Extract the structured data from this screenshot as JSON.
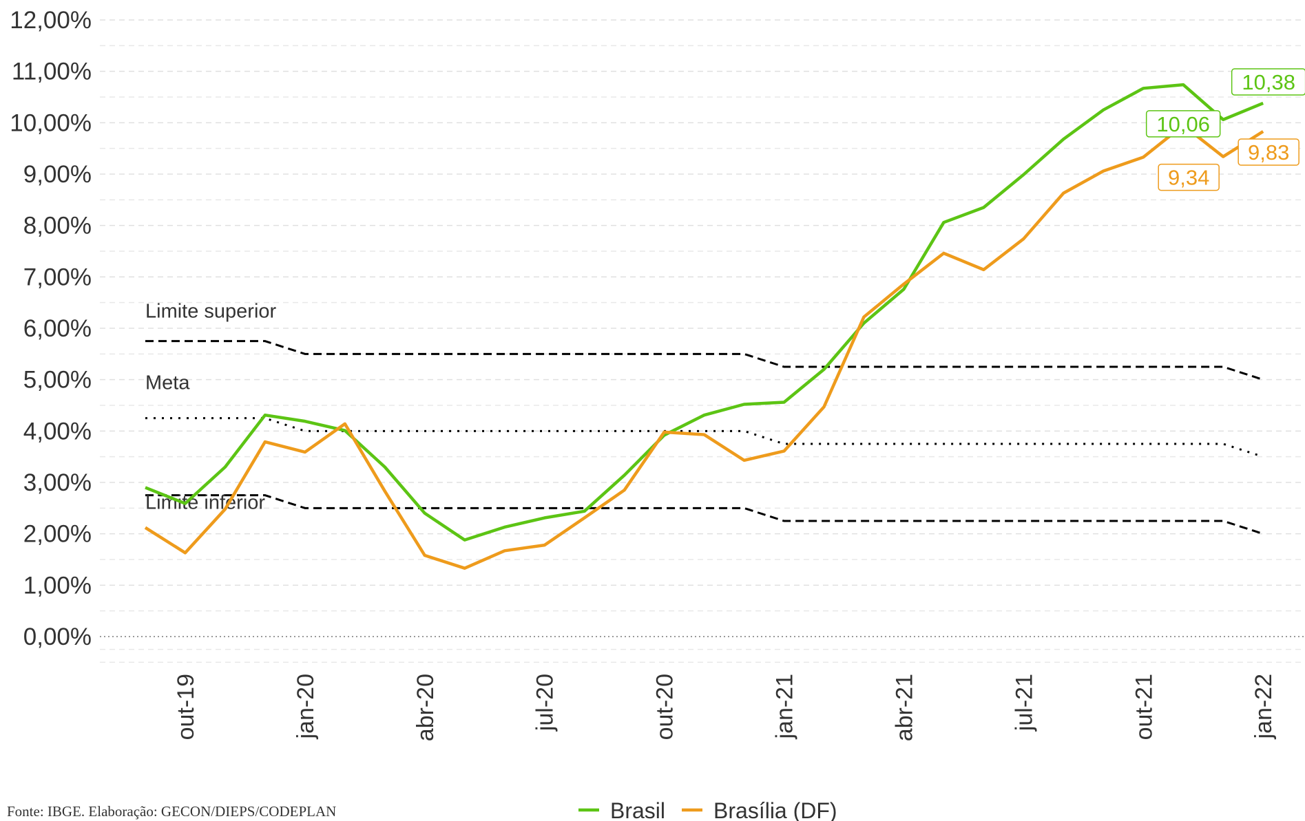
{
  "chart_data": {
    "type": "line",
    "categories": [
      null,
      "out-19",
      null,
      null,
      "jan-20",
      null,
      null,
      "abr-20",
      null,
      null,
      "jul-20",
      null,
      null,
      "out-20",
      null,
      null,
      "jan-21",
      null,
      null,
      "abr-21",
      null,
      null,
      "jul-21",
      null,
      null,
      "out-21",
      null,
      null,
      "jan-22"
    ],
    "series": [
      {
        "name": "Brasil",
        "color": "#5cc414",
        "values": [
          2.9,
          2.59,
          3.3,
          4.31,
          4.19,
          4.01,
          3.3,
          2.4,
          1.88,
          2.13,
          2.31,
          2.44,
          3.14,
          3.92,
          4.31,
          4.52,
          4.56,
          5.2,
          6.1,
          6.76,
          8.06,
          8.35,
          8.99,
          9.68,
          10.25,
          10.67,
          10.74,
          10.06,
          10.38
        ],
        "value_labels": [
          null,
          null,
          null,
          null,
          null,
          null,
          null,
          null,
          null,
          null,
          null,
          null,
          null,
          null,
          null,
          null,
          null,
          null,
          null,
          null,
          null,
          null,
          null,
          null,
          null,
          null,
          null,
          "10,06",
          "10,38"
        ]
      },
      {
        "name": "Brasília (DF)",
        "color": "#ee9b1c",
        "values": [
          2.12,
          1.63,
          2.48,
          3.79,
          3.59,
          4.14,
          2.83,
          1.58,
          1.33,
          1.67,
          1.78,
          2.31,
          2.85,
          3.98,
          3.93,
          3.43,
          3.61,
          4.47,
          6.22,
          6.86,
          7.46,
          7.14,
          7.74,
          8.63,
          9.06,
          9.33,
          9.95,
          9.34,
          9.83
        ],
        "value_labels": [
          null,
          null,
          null,
          null,
          null,
          null,
          null,
          null,
          null,
          null,
          null,
          null,
          null,
          null,
          null,
          null,
          null,
          null,
          null,
          null,
          null,
          null,
          null,
          null,
          null,
          null,
          null,
          "9,34",
          "9,83"
        ]
      }
    ],
    "reference_lines": [
      {
        "label": "Limite superior",
        "style": "dashed",
        "color": "#000000",
        "values": [
          5.75,
          5.75,
          5.75,
          5.75,
          5.5,
          5.5,
          5.5,
          5.5,
          5.5,
          5.5,
          5.5,
          5.5,
          5.5,
          5.5,
          5.5,
          5.5,
          5.25,
          5.25,
          5.25,
          5.25,
          5.25,
          5.25,
          5.25,
          5.25,
          5.25,
          5.25,
          5.25,
          5.25,
          5.0
        ]
      },
      {
        "label": "Meta",
        "style": "dotted",
        "color": "#000000",
        "values": [
          4.25,
          4.25,
          4.25,
          4.25,
          4.0,
          4.0,
          4.0,
          4.0,
          4.0,
          4.0,
          4.0,
          4.0,
          4.0,
          4.0,
          4.0,
          4.0,
          3.75,
          3.75,
          3.75,
          3.75,
          3.75,
          3.75,
          3.75,
          3.75,
          3.75,
          3.75,
          3.75,
          3.75,
          3.5
        ]
      },
      {
        "label": "Limite inferior",
        "style": "dashed",
        "color": "#000000",
        "values": [
          2.75,
          2.75,
          2.75,
          2.75,
          2.5,
          2.5,
          2.5,
          2.5,
          2.5,
          2.5,
          2.5,
          2.5,
          2.5,
          2.5,
          2.5,
          2.5,
          2.25,
          2.25,
          2.25,
          2.25,
          2.25,
          2.25,
          2.25,
          2.25,
          2.25,
          2.25,
          2.25,
          2.25,
          2.0
        ]
      }
    ],
    "ylim": [
      -0.5,
      12
    ],
    "yticks": [
      {
        "value": 0,
        "label": "0,00%"
      },
      {
        "value": 1,
        "label": "1,00%"
      },
      {
        "value": 2,
        "label": "2,00%"
      },
      {
        "value": 3,
        "label": "3,00%"
      },
      {
        "value": 4,
        "label": "4,00%"
      },
      {
        "value": 5,
        "label": "5,00%"
      },
      {
        "value": 6,
        "label": "6,00%"
      },
      {
        "value": 7,
        "label": "7,00%"
      },
      {
        "value": 8,
        "label": "8,00%"
      },
      {
        "value": 9,
        "label": "9,00%"
      },
      {
        "value": 10,
        "label": "10,00%"
      },
      {
        "value": 11,
        "label": "11,00%"
      },
      {
        "value": 12,
        "label": "12,00%"
      }
    ],
    "grid": true,
    "legend": "bottom",
    "source": "Fonte: IBGE. Elaboração: GECON/DIEPS/CODEPLAN"
  }
}
